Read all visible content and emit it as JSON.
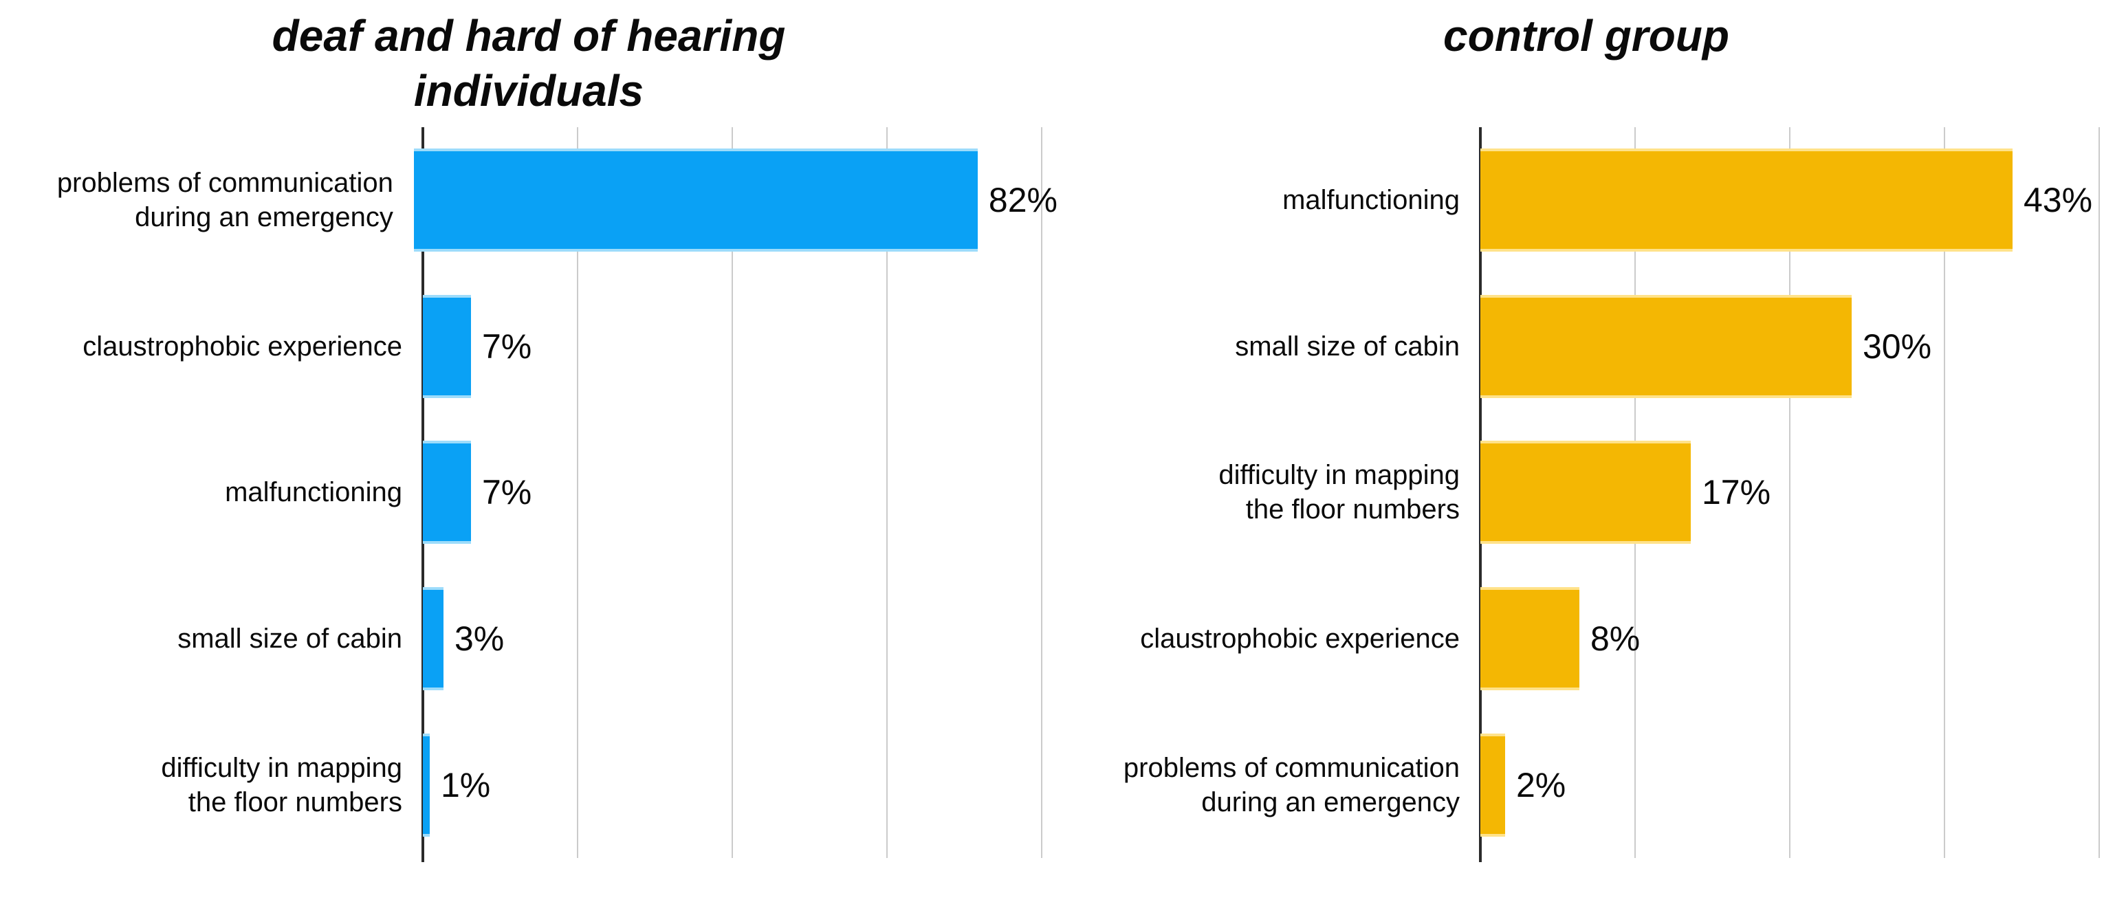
{
  "figure": {
    "background": "#ffffff",
    "text_color": "#0a0a0a",
    "grid_color": "#cbcbcb",
    "axis_color": "#2b2b2b"
  },
  "chart_data": [
    {
      "type": "bar",
      "orientation": "horizontal",
      "title": "deaf and hard of hearing individuals",
      "title_lines": [
        "deaf and hard of hearing",
        "individuals"
      ],
      "bar_color": "#0aa1f5",
      "bar_edge_color": "#9ddcfb",
      "xlim": [
        0,
        90
      ],
      "gridline_count": 4,
      "grid": true,
      "legend": false,
      "unit": "%",
      "categories": [
        "problems of communication during an emergency",
        "claustrophobic experience",
        "malfunctioning",
        "small size of cabin",
        "difficulty in mapping the floor numbers"
      ],
      "category_lines": [
        [
          "problems of communication",
          "during an emergency"
        ],
        [
          "claustrophobic experience"
        ],
        [
          "malfunctioning"
        ],
        [
          "small size of cabin"
        ],
        [
          "difficulty in mapping",
          "the floor numbers"
        ]
      ],
      "values": [
        82,
        7,
        7,
        3,
        1
      ],
      "value_labels": [
        "82%",
        "7%",
        "7%",
        "3%",
        "1%"
      ]
    },
    {
      "type": "bar",
      "orientation": "horizontal",
      "title": "control group",
      "title_lines": [
        "control group"
      ],
      "bar_color": "#f4b703",
      "bar_edge_color": "#ffe28a",
      "xlim": [
        0,
        50
      ],
      "gridline_count": 4,
      "grid": true,
      "legend": false,
      "unit": "%",
      "categories": [
        "malfunctioning",
        "small size of cabin",
        "difficulty in mapping the floor numbers",
        "claustrophobic experience",
        "problems of communication during an emergency"
      ],
      "category_lines": [
        [
          "malfunctioning"
        ],
        [
          "small size of cabin"
        ],
        [
          "difficulty in mapping",
          "the floor numbers"
        ],
        [
          "claustrophobic experience"
        ],
        [
          "problems of communication",
          "during an emergency"
        ]
      ],
      "values": [
        43,
        30,
        17,
        8,
        2
      ],
      "value_labels": [
        "43%",
        "30%",
        "17%",
        "8%",
        "2%"
      ]
    }
  ]
}
